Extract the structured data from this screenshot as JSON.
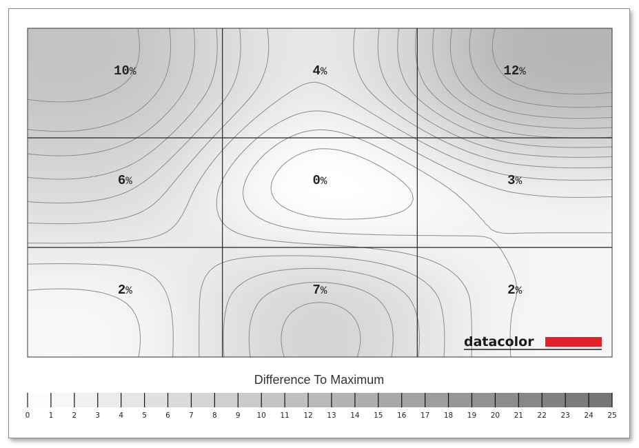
{
  "chart_data": {
    "type": "heatmap",
    "title": "",
    "legend_title": "Difference To Maximum",
    "scale": {
      "min": 0,
      "max": 25,
      "ticks": [
        "0",
        "1",
        "2",
        "3",
        "4",
        "5",
        "6",
        "7",
        "8",
        "9",
        "10",
        "11",
        "12",
        "13",
        "14",
        "15",
        "16",
        "17",
        "18",
        "19",
        "20",
        "21",
        "22",
        "23",
        "24",
        "25"
      ]
    },
    "grid": {
      "rows": 3,
      "cols": 3
    },
    "cells": [
      {
        "row": 0,
        "col": 0,
        "value": 10,
        "label": "10",
        "unit": "%"
      },
      {
        "row": 0,
        "col": 1,
        "value": 4,
        "label": "4",
        "unit": "%"
      },
      {
        "row": 0,
        "col": 2,
        "value": 12,
        "label": "12",
        "unit": "%"
      },
      {
        "row": 1,
        "col": 0,
        "value": 6,
        "label": "6",
        "unit": "%"
      },
      {
        "row": 1,
        "col": 1,
        "value": 0,
        "label": "0",
        "unit": "%"
      },
      {
        "row": 1,
        "col": 2,
        "value": 3,
        "label": "3",
        "unit": "%"
      },
      {
        "row": 2,
        "col": 0,
        "value": 2,
        "label": "2",
        "unit": "%"
      },
      {
        "row": 2,
        "col": 1,
        "value": 7,
        "label": "7",
        "unit": "%"
      },
      {
        "row": 2,
        "col": 2,
        "value": 2,
        "label": "2",
        "unit": "%"
      }
    ]
  },
  "logo": {
    "text": "datacolor",
    "bar_color": "#e2222a"
  }
}
